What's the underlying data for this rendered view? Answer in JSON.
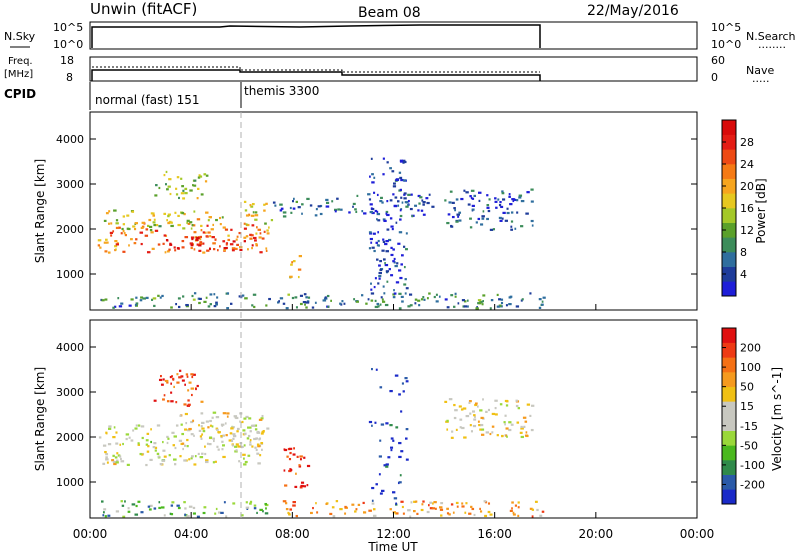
{
  "header": {
    "site": "Unwin (fitACF)",
    "beam": "Beam 08",
    "date": "22/May/2016"
  },
  "panels": {
    "nsky": {
      "label": "N.Sky",
      "left_ticks": [
        "10^5",
        "10^0"
      ],
      "right_ticks": [
        "10^5",
        "10^0"
      ],
      "right_label": "N.Search",
      "right_legend": "........"
    },
    "freq": {
      "label_line1": "Freq.",
      "label_line2": "[MHz]",
      "left_ticks": [
        "18",
        "8"
      ],
      "right_ticks": [
        "60",
        "0"
      ],
      "right_label": "Nave",
      "right_legend": "....."
    },
    "cpid": {
      "label": "CPID",
      "segments": [
        {
          "text": "normal (fast) 151",
          "start_h": 0,
          "end_h": 6
        },
        {
          "text": "themis 3300",
          "start_h": 6,
          "end_h": 18
        }
      ]
    }
  },
  "chart_data": [
    {
      "type": "heatmap",
      "name": "power",
      "ylabel": "Slant Range [km]",
      "yticks": [
        1000,
        2000,
        3000,
        4000
      ],
      "ylim": [
        200,
        4600
      ],
      "xlim": [
        0,
        24
      ],
      "colorbar": {
        "label": "Power [dB]",
        "ticks": [
          "4",
          "8",
          "12",
          "16",
          "20",
          "24",
          "28"
        ],
        "colors": [
          "#1e1ed8",
          "#1e3c9a",
          "#2f6e9e",
          "#3c8c5a",
          "#5aa02a",
          "#a4c828",
          "#e6c820",
          "#f6a51e",
          "#f57a14",
          "#ee4a14",
          "#e41c14",
          "#d80a0a"
        ]
      },
      "regions": [
        {
          "t0": 0.3,
          "t1": 7.0,
          "r0": 1500,
          "r1": 2150,
          "level": 0.72
        },
        {
          "t0": 3.0,
          "t1": 6.8,
          "r0": 1550,
          "r1": 1850,
          "level": 0.95
        },
        {
          "t0": 0.5,
          "t1": 5.5,
          "r0": 2000,
          "r1": 2450,
          "level": 0.5
        },
        {
          "t0": 6.0,
          "t1": 7.2,
          "r0": 2050,
          "r1": 2650,
          "level": 0.55
        },
        {
          "t0": 7.2,
          "t1": 10.5,
          "r0": 2300,
          "r1": 2700,
          "level": 0.18
        },
        {
          "t0": 14.0,
          "t1": 17.5,
          "r0": 2000,
          "r1": 2900,
          "level": 0.15
        },
        {
          "t0": 10.5,
          "t1": 13.5,
          "r0": 2300,
          "r1": 2800,
          "level": 0.15
        },
        {
          "t0": 2.5,
          "t1": 4.6,
          "r0": 2700,
          "r1": 3300,
          "level": 0.45
        },
        {
          "t0": 7.8,
          "t1": 8.4,
          "r0": 950,
          "r1": 1450,
          "level": 0.55
        },
        {
          "t0": 0.4,
          "t1": 18.0,
          "r0": 250,
          "r1": 600,
          "level": 0.25
        },
        {
          "t0": 11.0,
          "t1": 12.5,
          "r0": 500,
          "r1": 3600,
          "level": 0.1
        }
      ]
    },
    {
      "type": "heatmap",
      "name": "velocity",
      "ylabel": "Slant Range [km]",
      "yticks": [
        1000,
        2000,
        3000,
        4000
      ],
      "ylim": [
        200,
        4600
      ],
      "xlim": [
        0,
        24
      ],
      "colorbar": {
        "label": "Velocity [m s^-1]",
        "ticks": [
          "200",
          "100",
          "50",
          "15",
          "-15",
          "-50",
          "-100",
          "-200"
        ],
        "colors": [
          "#1a2ac8",
          "#2a5aa8",
          "#2f8a4a",
          "#4ab81e",
          "#9ad83a",
          "#c8c8c0",
          "#c8c8c0",
          "#f0c014",
          "#f59a1e",
          "#f57014",
          "#ee3a14",
          "#e01010"
        ]
      },
      "regions": [
        {
          "t0": 0.3,
          "t1": 6.8,
          "r0": 1400,
          "r1": 2300,
          "level": 0.5
        },
        {
          "t0": 3.5,
          "t1": 7.0,
          "r0": 1800,
          "r1": 2600,
          "level": 0.55
        },
        {
          "t0": 7.6,
          "t1": 8.6,
          "r0": 900,
          "r1": 1900,
          "level": 0.92
        },
        {
          "t0": 2.5,
          "t1": 4.4,
          "r0": 2700,
          "r1": 3500,
          "level": 0.88
        },
        {
          "t0": 7.5,
          "t1": 18.0,
          "r0": 250,
          "r1": 600,
          "level": 0.7
        },
        {
          "t0": 0.4,
          "t1": 7.0,
          "r0": 250,
          "r1": 600,
          "level": 0.3
        },
        {
          "t0": 14.0,
          "t1": 17.5,
          "r0": 2000,
          "r1": 2900,
          "level": 0.55
        },
        {
          "t0": 11.0,
          "t1": 12.5,
          "r0": 500,
          "r1": 3600,
          "level": 0.05
        }
      ]
    }
  ],
  "xaxis": {
    "ticks": [
      "00:00",
      "04:00",
      "08:00",
      "12:00",
      "16:00",
      "20:00",
      "00:00"
    ],
    "label": "Time UT"
  },
  "colors": {
    "axis": "#000000",
    "marker_line": "#b0b0b0"
  }
}
